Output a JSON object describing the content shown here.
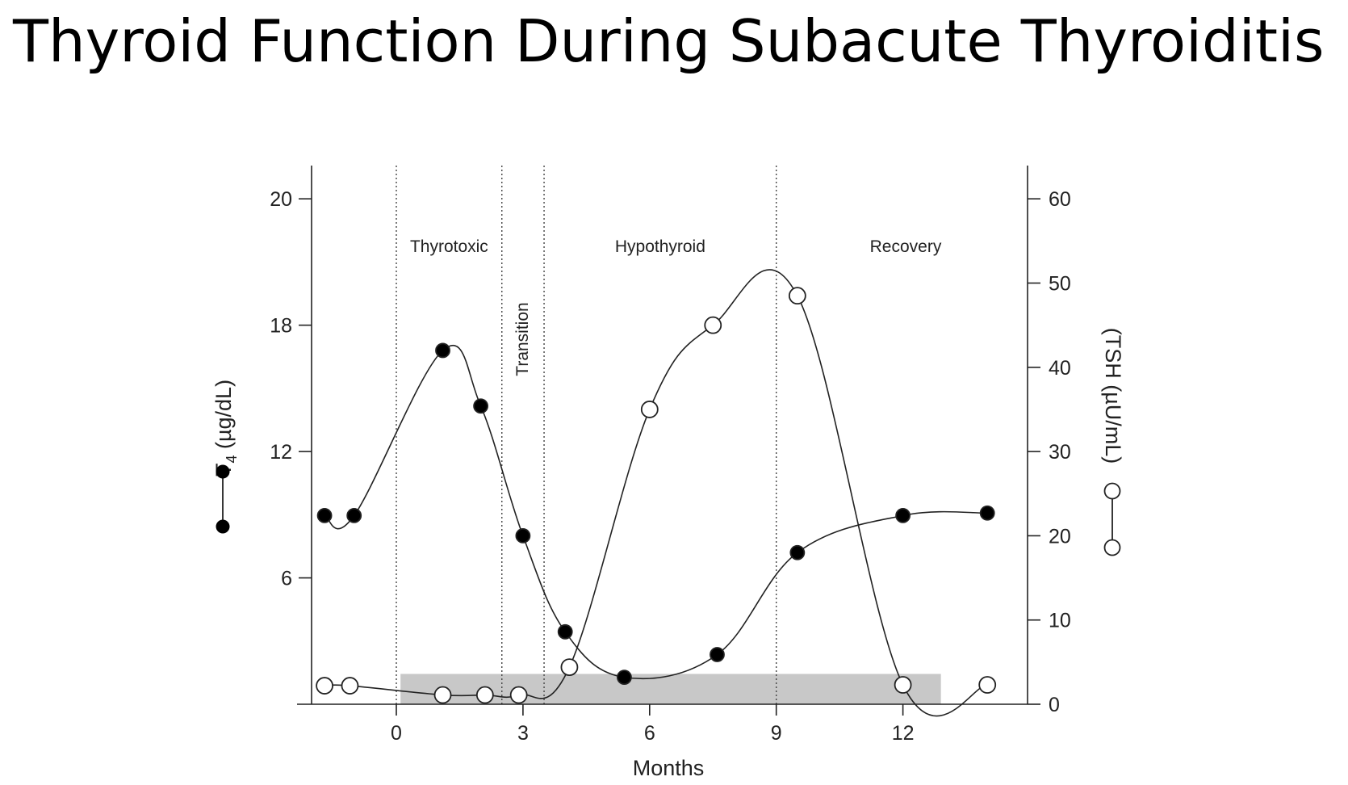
{
  "title": "Thyroid Function During Subacute Thyroiditis",
  "chart_data": {
    "type": "line",
    "xlabel": "Months",
    "x_ticks": [
      0,
      3,
      6,
      9,
      12
    ],
    "xlim": [
      -2.5,
      15
    ],
    "y_left": {
      "label_main": "T",
      "label_sub": "4",
      "label_unit": " (µg/dL)",
      "ticks": [
        6,
        12,
        18,
        20
      ],
      "tick_values_at_position": [
        6,
        12,
        18,
        20
      ]
    },
    "y_right": {
      "label": "(TSH (µU/mL)",
      "ticks": [
        0,
        10,
        20,
        30,
        40,
        50,
        60
      ],
      "ylim": [
        0,
        60
      ]
    },
    "phases": [
      {
        "name": "Thyrotoxic",
        "orientation": "horizontal"
      },
      {
        "name": "Transition",
        "orientation": "vertical"
      },
      {
        "name": "Hypothyroid",
        "orientation": "horizontal"
      },
      {
        "name": "Recovery",
        "orientation": "horizontal"
      }
    ],
    "phase_boundaries": [
      0,
      2.5,
      3.5,
      9
    ],
    "normal_range": {
      "x": [
        0.1,
        12.9
      ],
      "tsh": [
        0,
        3.6
      ]
    },
    "series": [
      {
        "name": "T4",
        "marker": "filled",
        "x": [
          -1.7,
          -1,
          1.1,
          2,
          3,
          4,
          5.4,
          7.6,
          9.5,
          12,
          14
        ],
        "y": [
          22.4,
          22.4,
          42,
          35.4,
          20,
          8.6,
          3.2,
          5.9,
          18,
          22.4,
          22.7
        ]
      },
      {
        "name": "TSH",
        "marker": "open",
        "x": [
          -1.7,
          -1.1,
          1.1,
          2.1,
          2.9,
          4.1,
          6,
          7.5,
          9.5,
          12,
          14
        ],
        "y": [
          2.2,
          2.2,
          1.1,
          1.1,
          1.1,
          4.4,
          35,
          45,
          48.5,
          2.3,
          2.3
        ]
      }
    ]
  }
}
